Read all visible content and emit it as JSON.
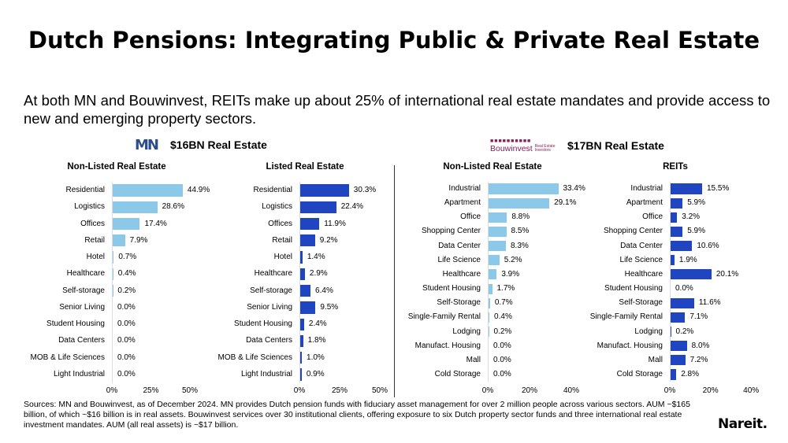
{
  "title": "Dutch Pensions: Integrating Public & Private Real Estate",
  "subtitle": "At both MN and Bouwinvest, REITs make up about 25% of international real estate mandates and provide access to new and emerging property sectors.",
  "mn": {
    "logo": "MN",
    "header": "$16BN Real Estate"
  },
  "bouwinvest": {
    "logo": "Bouwinvest",
    "logo_sub": "Real Estate Investors",
    "header": "$17BN Real Estate"
  },
  "colors": {
    "non_listed": "#8cc8e8",
    "listed": "#1f45c0"
  },
  "chart_data": [
    {
      "type": "bar",
      "orientation": "horizontal",
      "title": "Non-Listed Real Estate",
      "xlim": [
        0,
        50
      ],
      "xticks": [
        "0%",
        "25%",
        "50%"
      ],
      "color": "#8cc8e8",
      "categories": [
        "Residential",
        "Logistics",
        "Offices",
        "Retail",
        "Hotel",
        "Healthcare",
        "Self-storage",
        "Senior Living",
        "Student Housing",
        "Data Centers",
        "MOB & Life Sciences",
        "Light Industrial"
      ],
      "values": [
        44.9,
        28.6,
        17.4,
        7.9,
        0.7,
        0.4,
        0.2,
        0.0,
        0.0,
        0.0,
        0.0,
        0.0
      ]
    },
    {
      "type": "bar",
      "orientation": "horizontal",
      "title": "Listed Real Estate",
      "xlim": [
        0,
        50
      ],
      "xticks": [
        "0%",
        "25%",
        "50%"
      ],
      "color": "#1f45c0",
      "categories": [
        "Residential",
        "Logistics",
        "Offices",
        "Retail",
        "Hotel",
        "Healthcare",
        "Self-storage",
        "Senior Living",
        "Student Housing",
        "Data Centers",
        "MOB & Life Sciences",
        "Light Industrial"
      ],
      "values": [
        30.3,
        22.4,
        11.9,
        9.2,
        1.4,
        2.9,
        6.4,
        9.5,
        2.4,
        1.8,
        1.0,
        0.9
      ]
    },
    {
      "type": "bar",
      "orientation": "horizontal",
      "title": "Non-Listed Real Estate",
      "xlim": [
        0,
        40
      ],
      "xticks": [
        "0%",
        "20%",
        "40%"
      ],
      "color": "#8cc8e8",
      "categories": [
        "Industrial",
        "Apartment",
        "Office",
        "Shopping Center",
        "Data Center",
        "Life Science",
        "Healthcare",
        "Student Housing",
        "Self-Storage",
        "Single-Family Rental",
        "Lodging",
        "Manufact. Housing",
        "Mall",
        "Cold Storage"
      ],
      "values": [
        33.4,
        29.1,
        8.8,
        8.5,
        8.3,
        5.2,
        3.9,
        1.7,
        0.7,
        0.4,
        0.2,
        0.0,
        0.0,
        0.0
      ]
    },
    {
      "type": "bar",
      "orientation": "horizontal",
      "title": "REITs",
      "xlim": [
        0,
        40
      ],
      "xticks": [
        "0%",
        "20%",
        "40%"
      ],
      "color": "#1f45c0",
      "categories": [
        "Industrial",
        "Apartment",
        "Office",
        "Shopping Center",
        "Data Center",
        "Life Science",
        "Healthcare",
        "Student Housing",
        "Self-Storage",
        "Single-Family Rental",
        "Lodging",
        "Manufact. Housing",
        "Mall",
        "Cold Storage"
      ],
      "values": [
        15.5,
        5.9,
        3.2,
        5.9,
        10.6,
        1.9,
        20.1,
        0.0,
        11.6,
        7.1,
        0.2,
        8.0,
        7.2,
        2.8
      ]
    }
  ],
  "footnote": "Sources: MN and Bouwinvest, as of December 2024. MN provides Dutch pension funds with fiduciary asset management for over 2 million people across various sectors. AUM ~$165 billion, of which ~$16 billion is in real assets. Bouwinvest services over 30 institutional clients, offering exposure to six Dutch property sector funds and three international real estate investment mandates. AUM (all real assets) is ~$17 billion.",
  "brand": "Nareit."
}
